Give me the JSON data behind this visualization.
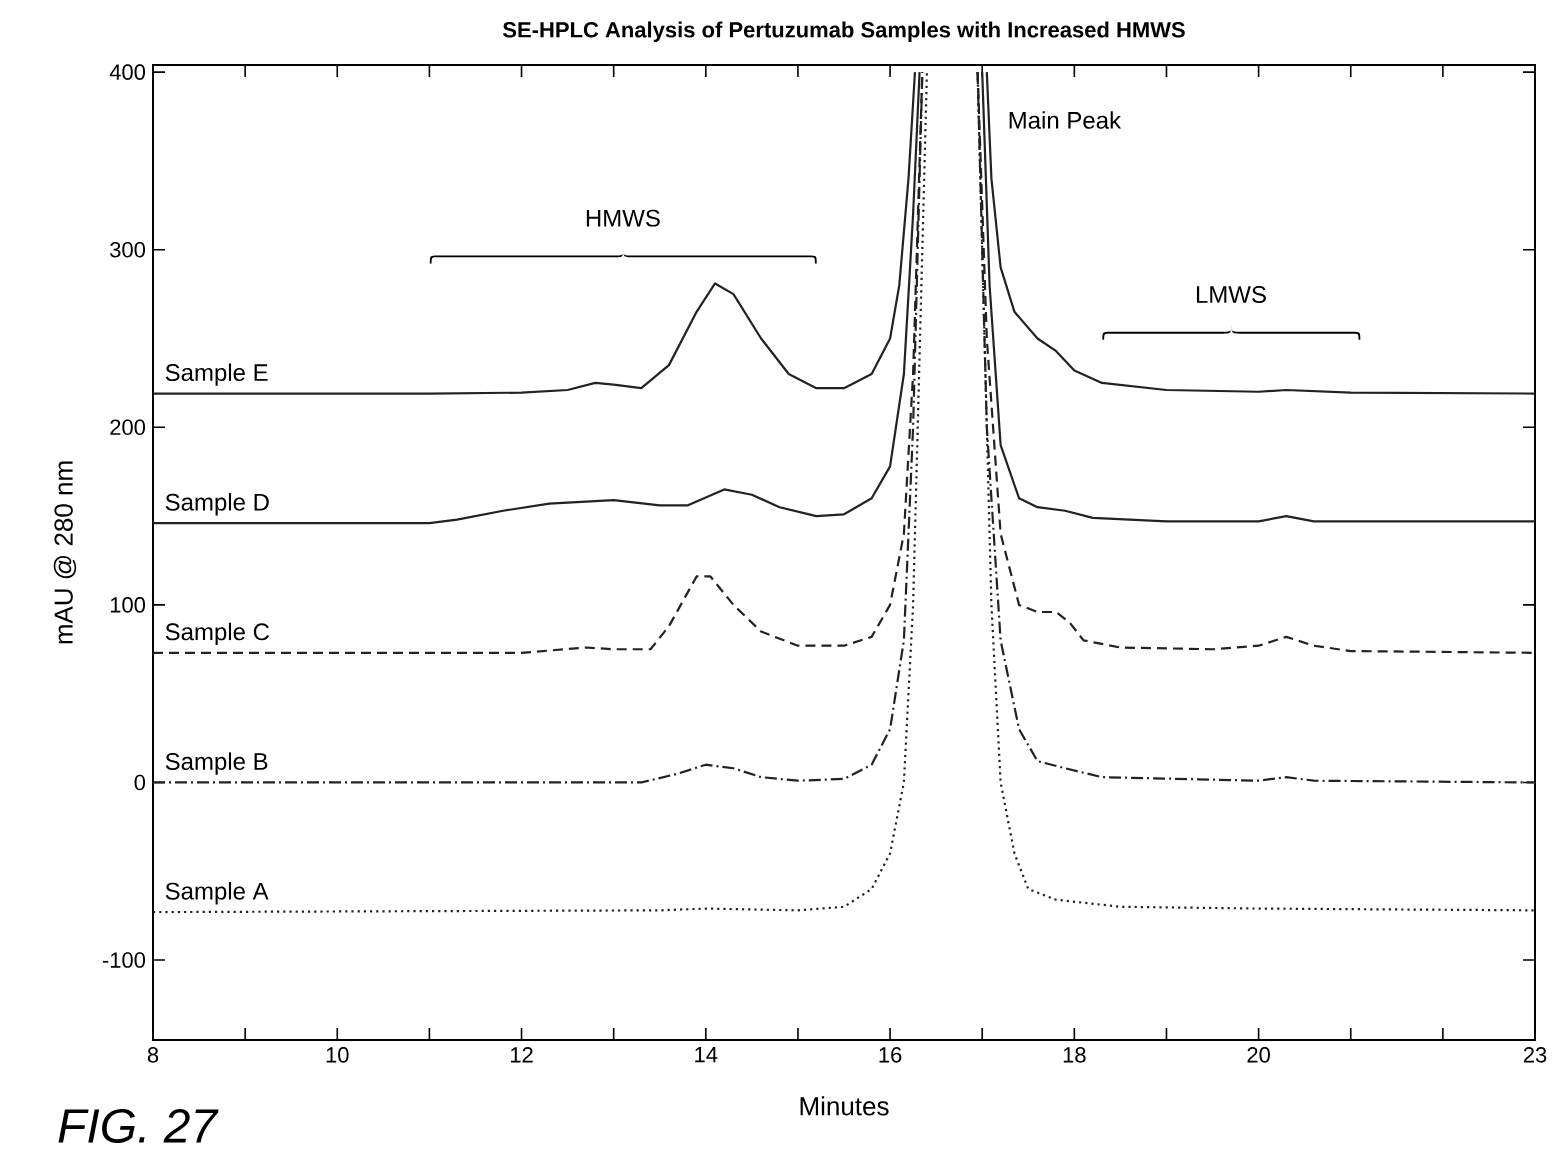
{
  "chart_data": {
    "type": "line",
    "title": "SE-HPLC Analysis of Pertuzumab Samples with Increased HMWS",
    "xlabel": "Minutes",
    "ylabel": "mAU @ 280 nm",
    "xlim": [
      8,
      23
    ],
    "ylim": [
      -145,
      404
    ],
    "xticks": [
      8,
      {
        "value": 9,
        "label": null
      },
      10,
      {
        "value": 11,
        "label": null
      },
      12,
      {
        "value": 13,
        "label": null
      },
      14,
      {
        "value": 15,
        "label": null
      },
      16,
      {
        "value": 17,
        "label": null
      },
      18,
      {
        "value": 19,
        "label": null
      },
      20,
      {
        "value": 21,
        "label": null
      },
      {
        "value": 22,
        "label": null
      },
      23
    ],
    "yticks": [
      -100,
      0,
      100,
      200,
      300,
      400
    ],
    "grid": false,
    "marker": "none",
    "series": [
      {
        "name": "Sample E",
        "color": "#222222",
        "line_style": "solid",
        "x": [
          8,
          11,
          12,
          12.5,
          12.8,
          13.0,
          13.3,
          13.6,
          13.9,
          14.1,
          14.3,
          14.6,
          14.9,
          15.2,
          15.5,
          15.8,
          16.0,
          16.1,
          16.2,
          16.27,
          16.6,
          17.05,
          17.1,
          17.2,
          17.35,
          17.6,
          17.8,
          18.0,
          18.3,
          19,
          20,
          20.3,
          21,
          23
        ],
        "values": [
          219,
          219,
          219.5,
          221,
          225,
          224,
          222,
          235,
          265,
          281,
          275,
          250,
          230,
          222,
          222,
          230,
          250,
          280,
          340,
          400,
          null,
          400,
          340,
          290,
          265,
          250,
          243,
          232,
          225,
          221,
          220,
          221,
          219.5,
          219
        ]
      },
      {
        "name": "Sample D",
        "color": "#222222",
        "line_style": "solid",
        "x": [
          8,
          11,
          11.3,
          11.8,
          12.3,
          13.0,
          13.5,
          13.8,
          14.2,
          14.5,
          14.8,
          15.2,
          15.5,
          15.8,
          16.0,
          16.15,
          16.25,
          16.32,
          16.6,
          17.0,
          17.08,
          17.2,
          17.4,
          17.6,
          17.9,
          18.2,
          19,
          20,
          20.3,
          20.6,
          23
        ],
        "values": [
          146,
          146,
          148,
          153,
          157,
          159,
          156,
          156,
          165,
          162,
          155,
          150,
          151,
          160,
          178,
          230,
          320,
          400,
          null,
          400,
          280,
          190,
          160,
          155,
          153,
          149,
          147,
          147,
          150,
          147,
          147
        ]
      },
      {
        "name": "Sample C",
        "color": "#222222",
        "line_style": "dashed",
        "x": [
          8,
          12,
          12.7,
          13.0,
          13.4,
          13.6,
          13.9,
          14.05,
          14.3,
          14.6,
          15.0,
          15.5,
          15.8,
          16.0,
          16.15,
          16.25,
          16.35,
          16.6,
          16.95,
          17.05,
          17.2,
          17.4,
          17.6,
          17.8,
          17.95,
          18.1,
          18.5,
          19.5,
          20.0,
          20.3,
          20.6,
          21,
          23
        ],
        "values": [
          73,
          73,
          76,
          75,
          75,
          88,
          116,
          116,
          100,
          85,
          77,
          77,
          82,
          100,
          140,
          230,
          400,
          null,
          400,
          250,
          140,
          100,
          96,
          96,
          90,
          80,
          76,
          75,
          77,
          82,
          77,
          74,
          73
        ]
      },
      {
        "name": "Sample B",
        "color": "#222222",
        "line_style": "dashdot",
        "x": [
          8,
          13.3,
          13.7,
          14.0,
          14.3,
          14.6,
          15.0,
          15.5,
          15.8,
          16.0,
          16.15,
          16.25,
          16.35,
          16.6,
          16.95,
          17.05,
          17.2,
          17.4,
          17.6,
          17.9,
          18.3,
          20,
          20.3,
          20.6,
          23
        ],
        "values": [
          0,
          0,
          5,
          10,
          8,
          3,
          1,
          2,
          10,
          30,
          80,
          200,
          400,
          null,
          400,
          200,
          80,
          30,
          12,
          8,
          3,
          1,
          3,
          1,
          0
        ]
      },
      {
        "name": "Sample A",
        "color": "#222222",
        "line_style": "dotted",
        "x": [
          8,
          13.5,
          14,
          15.0,
          15.5,
          15.8,
          16.0,
          16.15,
          16.25,
          16.35,
          16.4,
          16.6,
          16.95,
          17.0,
          17.1,
          17.2,
          17.35,
          17.5,
          17.8,
          18.5,
          20,
          23
        ],
        "values": [
          -73,
          -72,
          -71,
          -72,
          -70,
          -60,
          -40,
          0,
          100,
          300,
          400,
          null,
          400,
          300,
          100,
          0,
          -40,
          -60,
          -66,
          -70,
          -71,
          -72
        ]
      }
    ],
    "annotations": [
      "HMWS",
      "LMWS",
      "Main Peak",
      "FIG. 27"
    ]
  }
}
